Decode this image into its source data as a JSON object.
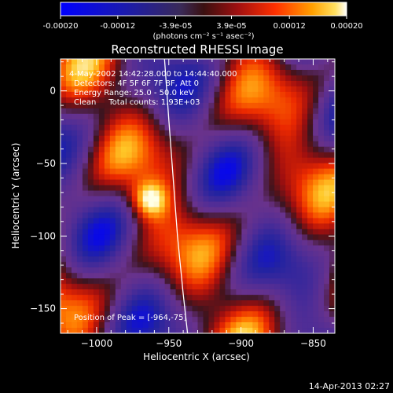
{
  "colorbar": {
    "tick_labels": [
      "-0.00020",
      "-0.00012",
      "-3.9e-05",
      "3.9e-05",
      "0.00012",
      "0.00020"
    ],
    "tick_values": [
      -0.0002,
      -0.00012,
      -3.9e-05,
      3.9e-05,
      0.00012,
      0.0002
    ],
    "range": [
      -0.0002,
      0.0002
    ],
    "units_label": "(photons cm⁻² s⁻¹ asec⁻²)",
    "colors": [
      "#0000ff",
      "#1a1aa0",
      "#3c2a5c",
      "#5a1a1a",
      "#b01010",
      "#ff3000",
      "#ff9a00",
      "#ffe040",
      "#ffffff"
    ]
  },
  "chart_data": {
    "type": "heatmap",
    "title": "Reconstructed RHESSI Image",
    "xlabel": "Heliocentric X (arcsec)",
    "ylabel": "Heliocentric Y (arcsec)",
    "xlim": [
      -1025,
      -835
    ],
    "ylim": [
      -167,
      22
    ],
    "xticks": [
      -1000,
      -950,
      -900,
      -850
    ],
    "yticks": [
      0,
      -50,
      -100,
      -150
    ],
    "annotations": [
      "4-May-2002 14:42:28.000 to 14:44:40.000",
      "Detectors: 4F 5F 6F 7F 8F, Att 0",
      "Energy Range: 25.0 - 50.0 keV",
      "Clean     Total counts: 1.93E+03"
    ],
    "peak_text": "Position of Peak = [-964,-75]",
    "peak": [
      -964,
      -75
    ],
    "limb_curve": [
      [
        -953,
        22
      ],
      [
        -950,
        -20
      ],
      [
        -947,
        -60
      ],
      [
        -944,
        -100
      ],
      [
        -940,
        -140
      ],
      [
        -937,
        -167
      ]
    ]
  },
  "timestamp": "14-Apr-2013 02:27"
}
